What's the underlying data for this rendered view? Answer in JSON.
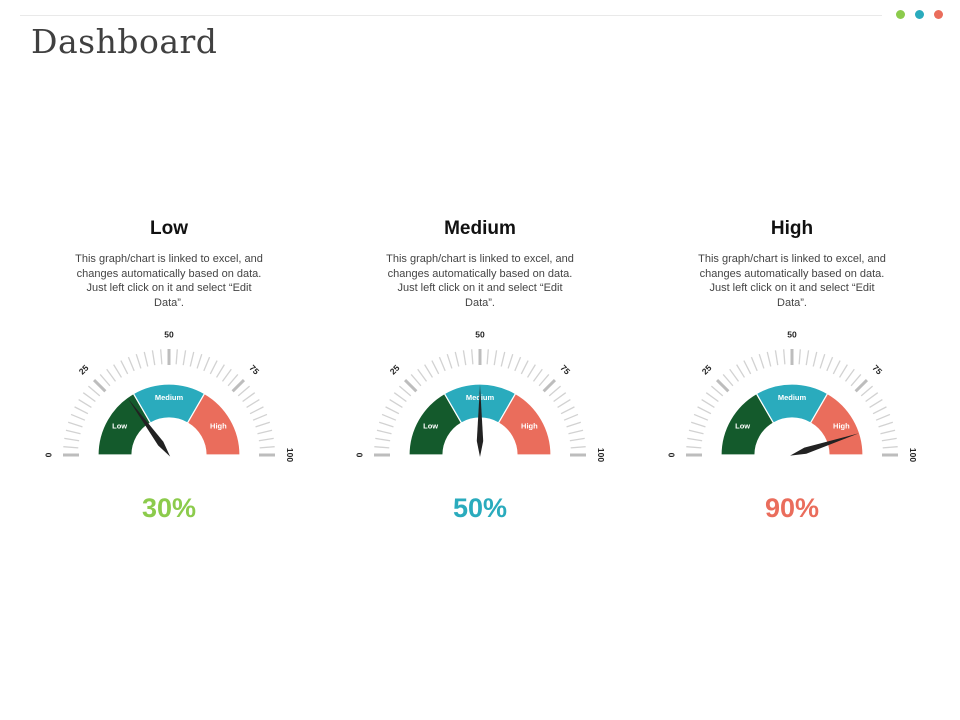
{
  "page": {
    "title": "Dashboard"
  },
  "header_dots": [
    "#8ccb4c",
    "#2aabbd",
    "#ea6d5c"
  ],
  "zone_colors": {
    "low": "#145a2c",
    "medium": "#2aabbd",
    "high": "#ea6d5c"
  },
  "zone_labels": {
    "low": "Low",
    "medium": "Medium",
    "high": "High"
  },
  "gauge_scale": {
    "min": 0,
    "max": 100,
    "labeled_ticks": [
      "0",
      "25",
      "50",
      "75",
      "100"
    ]
  },
  "description": "This graph/chart is linked to excel, and changes automatically based on data. Just left click on it and select “Edit Data”.",
  "chart_data": [
    {
      "type": "gauge",
      "title": "Low",
      "value": 30,
      "display": "30%",
      "value_color": "#8ccb4c"
    },
    {
      "type": "gauge",
      "title": "Medium",
      "value": 50,
      "display": "50%",
      "value_color": "#2aabbd"
    },
    {
      "type": "gauge",
      "title": "High",
      "value": 90,
      "display": "90%",
      "value_color": "#ea6d5c"
    }
  ]
}
